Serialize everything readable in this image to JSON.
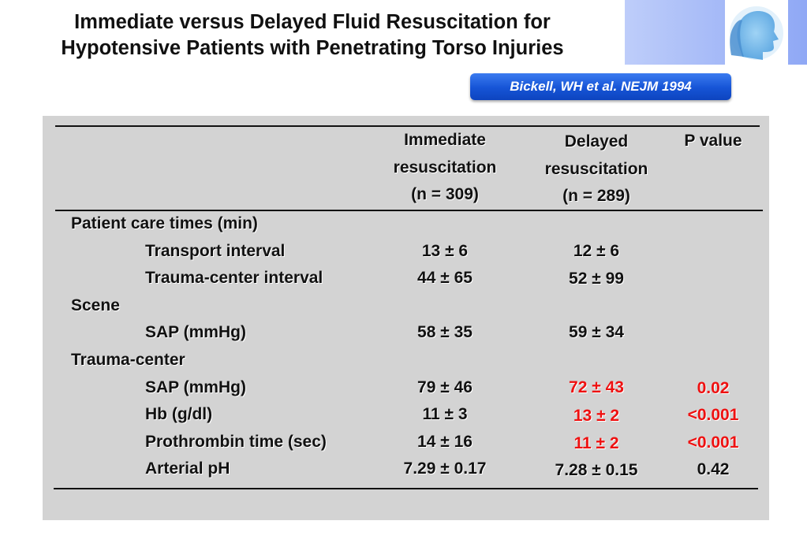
{
  "title": {
    "line1": "Immediate versus Delayed Fluid Resuscitation for",
    "line2": "Hypotensive Patients with Penetrating Torso Injuries"
  },
  "citation": "Bickell, WH et al. NEJM 1994",
  "logo": {
    "icon": "human-head-profile-icon"
  },
  "colors": {
    "highlight": "#ee1111",
    "citation_bg": "#1654d6",
    "panel_bg": "#d3d3d3",
    "header_gradient_end": "#8fa8f5"
  },
  "table": {
    "columns": {
      "immediate": [
        "Immediate",
        "resuscitation",
        "(n = 309)"
      ],
      "delayed": [
        "Delayed",
        "resuscitation",
        "(n = 289)"
      ],
      "pvalue": [
        "P value"
      ]
    },
    "rows": [
      {
        "label": "Patient care times (min)",
        "section": true,
        "immediate": "",
        "delayed": "",
        "p": ""
      },
      {
        "label": "Transport interval",
        "section": false,
        "immediate": "13 ± 6",
        "delayed": "12 ± 6",
        "p": ""
      },
      {
        "label": "Trauma-center interval",
        "section": false,
        "immediate": "44 ± 65",
        "delayed": "52 ± 99",
        "p": ""
      },
      {
        "label": "Scene",
        "section": true,
        "immediate": "",
        "delayed": "",
        "p": ""
      },
      {
        "label": "SAP (mmHg)",
        "section": false,
        "immediate": "58 ± 35",
        "delayed": "59 ± 34",
        "p": ""
      },
      {
        "label": "Trauma-center",
        "section": true,
        "immediate": "",
        "delayed": "",
        "p": ""
      },
      {
        "label": "SAP (mmHg)",
        "section": false,
        "immediate": "79 ± 46",
        "delayed": "72 ± 43",
        "p": "0.02",
        "highlight": true
      },
      {
        "label": "Hb (g/dl)",
        "section": false,
        "immediate": "11 ± 3",
        "delayed": "13 ± 2",
        "p": "<0.001",
        "highlight": true
      },
      {
        "label": "Prothrombin time (sec)",
        "section": false,
        "immediate": "14 ± 16",
        "delayed": "11 ± 2",
        "p": "<0.001",
        "highlight": true
      },
      {
        "label": "Arterial pH",
        "section": false,
        "immediate": "7.29 ± 0.17",
        "delayed": "7.28 ± 0.15",
        "p": "0.42",
        "highlight": false
      }
    ]
  }
}
